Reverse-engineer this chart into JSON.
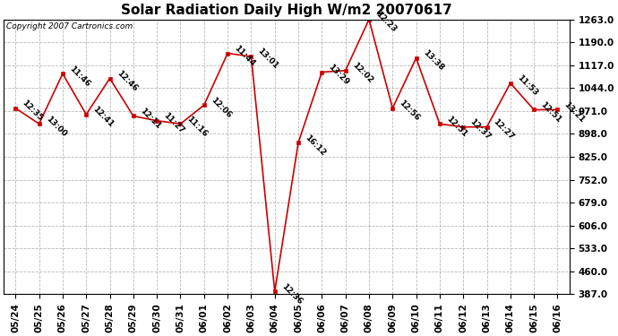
{
  "title": "Solar Radiation Daily High W/m2 20070617",
  "copyright": "Copyright 2007 Cartronics.com",
  "x_labels": [
    "05/24",
    "05/25",
    "05/26",
    "05/27",
    "05/28",
    "05/29",
    "05/30",
    "05/31",
    "06/01",
    "06/02",
    "06/03",
    "06/04",
    "06/05",
    "06/06",
    "06/07",
    "06/08",
    "06/09",
    "06/10",
    "06/11",
    "06/12",
    "06/13",
    "06/14",
    "06/15",
    "06/16"
  ],
  "y_values": [
    980,
    930,
    1090,
    960,
    1075,
    955,
    940,
    930,
    990,
    1155,
    1145,
    395,
    870,
    1095,
    1100,
    1263,
    980,
    1140,
    930,
    920,
    920,
    1060,
    975,
    975
  ],
  "time_labels": [
    "12:35",
    "13:00",
    "11:46",
    "12:41",
    "12:46",
    "12:11",
    "11:27",
    "11:16",
    "12:06",
    "11:44",
    "13:01",
    "12:36",
    "16:12",
    "13:29",
    "12:02",
    "12:23",
    "12:56",
    "13:38",
    "12:51",
    "12:37",
    "12:27",
    "11:53",
    "12:51",
    "13:21"
  ],
  "y_ticks": [
    387.0,
    460.0,
    533.0,
    606.0,
    679.0,
    752.0,
    825.0,
    898.0,
    971.0,
    1044.0,
    1117.0,
    1190.0,
    1263.0
  ],
  "y_min": 387.0,
  "y_max": 1263.0,
  "line_color": "#cc0000",
  "marker_color": "#cc0000",
  "bg_color": "#ffffff",
  "grid_color": "#999999",
  "title_fontsize": 11,
  "tick_fontsize": 7.5,
  "annot_fontsize": 6.5
}
